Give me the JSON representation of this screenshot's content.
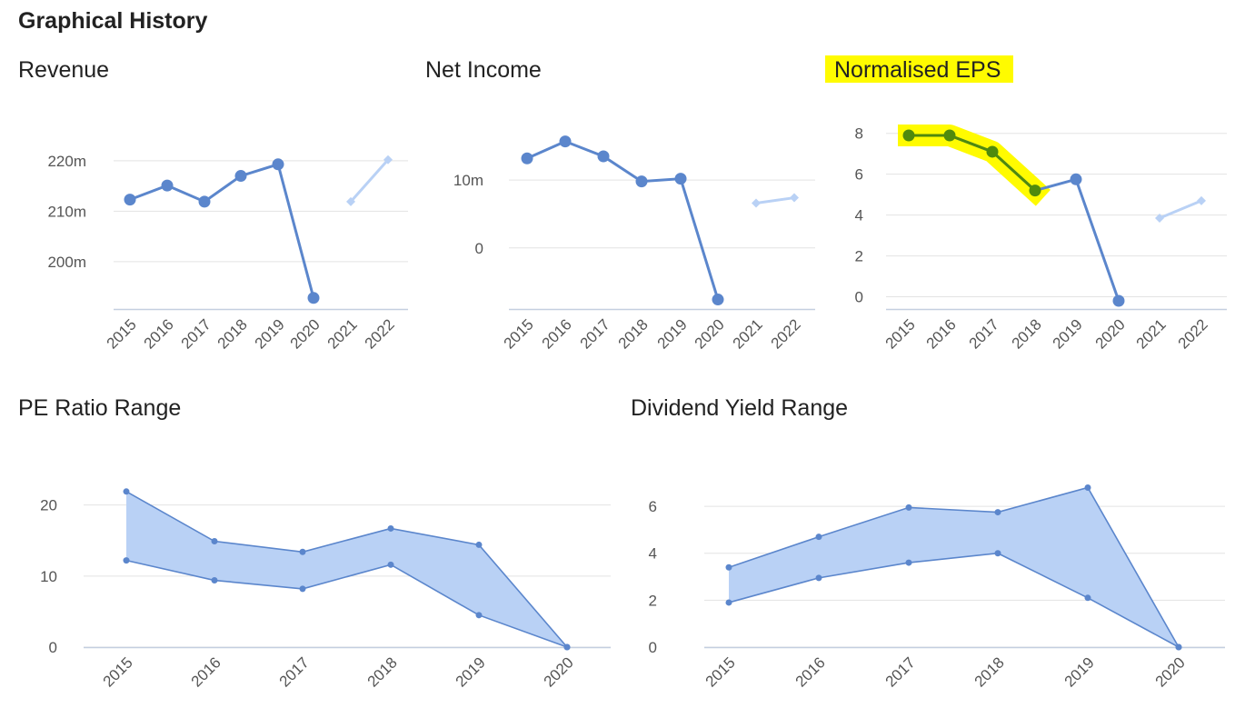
{
  "page": {
    "title": "Graphical History"
  },
  "colors": {
    "primary": "#5b86cc",
    "forecast": "#b9d1f5",
    "area_fill": "#b9d1f5",
    "highlight": "#fffb00",
    "highlight_line": "#4f8a0d",
    "grid": "#e3e3e3",
    "axis": "#c4cfe0"
  },
  "chart_data": [
    {
      "type": "line",
      "title": "Revenue",
      "x": [
        "2015",
        "2016",
        "2017",
        "2018",
        "2019",
        "2020",
        "2021",
        "2022"
      ],
      "series": [
        {
          "values": [
            212.3,
            215.1,
            211.9,
            217.0,
            219.3,
            192.8,
            null,
            null
          ]
        },
        {
          "values": [
            null,
            null,
            null,
            null,
            null,
            null,
            211.9,
            220.2
          ],
          "forecast": true
        }
      ],
      "yticks": [
        200,
        210,
        220
      ],
      "ytick_labels": [
        "200m",
        "210m",
        "220m"
      ],
      "ylim": [
        190.6,
        229.9
      ],
      "grid": true
    },
    {
      "type": "line",
      "title": "Net Income",
      "x": [
        "2015",
        "2016",
        "2017",
        "2018",
        "2019",
        "2020",
        "2021",
        "2022"
      ],
      "series": [
        {
          "values": [
            13.2,
            15.7,
            13.5,
            9.8,
            10.2,
            -7.6,
            null,
            null
          ]
        },
        {
          "values": [
            null,
            null,
            null,
            null,
            null,
            null,
            6.6,
            7.4
          ],
          "forecast": true
        }
      ],
      "yticks": [
        0,
        10
      ],
      "ytick_labels": [
        "0",
        "10m"
      ],
      "ylim": [
        -9.0,
        20.2
      ],
      "grid": true
    },
    {
      "type": "line",
      "title": "Normalised EPS",
      "x": [
        "2015",
        "2016",
        "2017",
        "2018",
        "2019",
        "2020",
        "2021",
        "2022"
      ],
      "series": [
        {
          "values": [
            7.9,
            7.9,
            7.1,
            5.2,
            5.75,
            -0.2,
            null,
            null
          ]
        },
        {
          "values": [
            null,
            null,
            null,
            null,
            null,
            null,
            3.85,
            4.7
          ],
          "forecast": true
        }
      ],
      "highlight_range": [
        0,
        3
      ],
      "yticks": [
        0,
        2,
        4,
        6,
        8
      ],
      "ytick_labels": [
        "0",
        "2",
        "4",
        "6",
        "8"
      ],
      "ylim": [
        -0.6,
        9.1
      ],
      "grid": true
    },
    {
      "type": "area",
      "title": "PE Ratio Range",
      "x": [
        "2015",
        "2016",
        "2017",
        "2018",
        "2019",
        "2020"
      ],
      "series": [
        {
          "values": [
            21.9,
            14.9,
            13.4,
            16.7,
            14.4,
            0
          ]
        },
        {
          "values": [
            12.2,
            9.4,
            8.2,
            11.6,
            4.5,
            0
          ]
        }
      ],
      "yticks": [
        0,
        10,
        20
      ],
      "ytick_labels": [
        "0",
        "10",
        "20"
      ],
      "ylim": [
        0,
        28.4
      ],
      "grid": true
    },
    {
      "type": "area",
      "title": "Dividend Yield Range",
      "x": [
        "2015",
        "2016",
        "2017",
        "2018",
        "2019",
        "2020"
      ],
      "series": [
        {
          "values": [
            3.4,
            4.7,
            5.95,
            5.75,
            6.8,
            0
          ]
        },
        {
          "values": [
            1.9,
            2.95,
            3.6,
            4.0,
            2.1,
            0
          ]
        }
      ],
      "yticks": [
        0,
        2,
        4,
        6
      ],
      "ytick_labels": [
        "0",
        "2",
        "4",
        "6"
      ],
      "ylim": [
        0,
        8.6
      ],
      "grid": true
    }
  ]
}
